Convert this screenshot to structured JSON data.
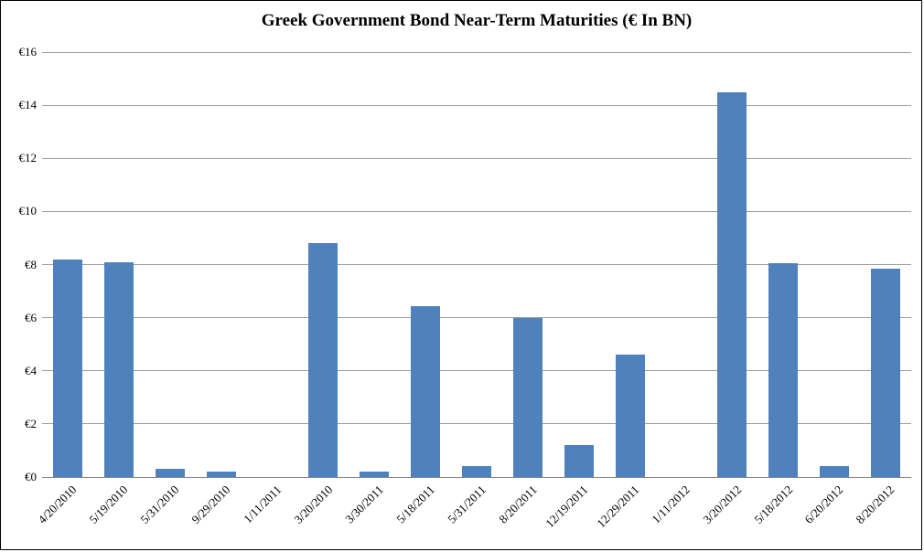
{
  "window": {
    "background": "#ffffff",
    "frame_border_color": "#000000"
  },
  "chart_data": {
    "type": "bar",
    "title": "Greek Government Bond Near-Term Maturities (€ In BN)",
    "categories": [
      "4/20/2010",
      "5/19/2010",
      "5/31/2010",
      "9/29/2010",
      "1/11/2011",
      "3/20/2010",
      "3/30/2011",
      "5/18/2011",
      "5/31/2011",
      "8/20/2011",
      "12/19/2011",
      "12/29/2011",
      "1/11/2012",
      "3/20/2012",
      "5/18/2012",
      "6/20/2012",
      "8/20/2012"
    ],
    "values": [
      8.2,
      8.1,
      0.3,
      0.2,
      0,
      8.8,
      0.2,
      6.45,
      0.4,
      6.0,
      1.2,
      4.6,
      0,
      14.5,
      8.05,
      0.4,
      7.85
    ],
    "xlabel": "",
    "ylabel": "",
    "ylim": [
      0,
      16
    ],
    "y_tick_step": 2,
    "y_tick_labels": [
      "€16",
      "€14",
      "€12",
      "€10",
      "€8",
      "€6",
      "€4",
      "€2",
      "€0"
    ],
    "y_tick_values": [
      16,
      14,
      12,
      10,
      8,
      6,
      4,
      2,
      0
    ],
    "currency_prefix": "€",
    "grid": "horizontal",
    "legend": "none",
    "x_label_rotation_deg": 45,
    "bar_color": "#4F81BD",
    "gridline_color": "#9d9d9d",
    "axis_line_color": "#868686",
    "title_color": "#000000",
    "tick_label_color": "#000000"
  }
}
